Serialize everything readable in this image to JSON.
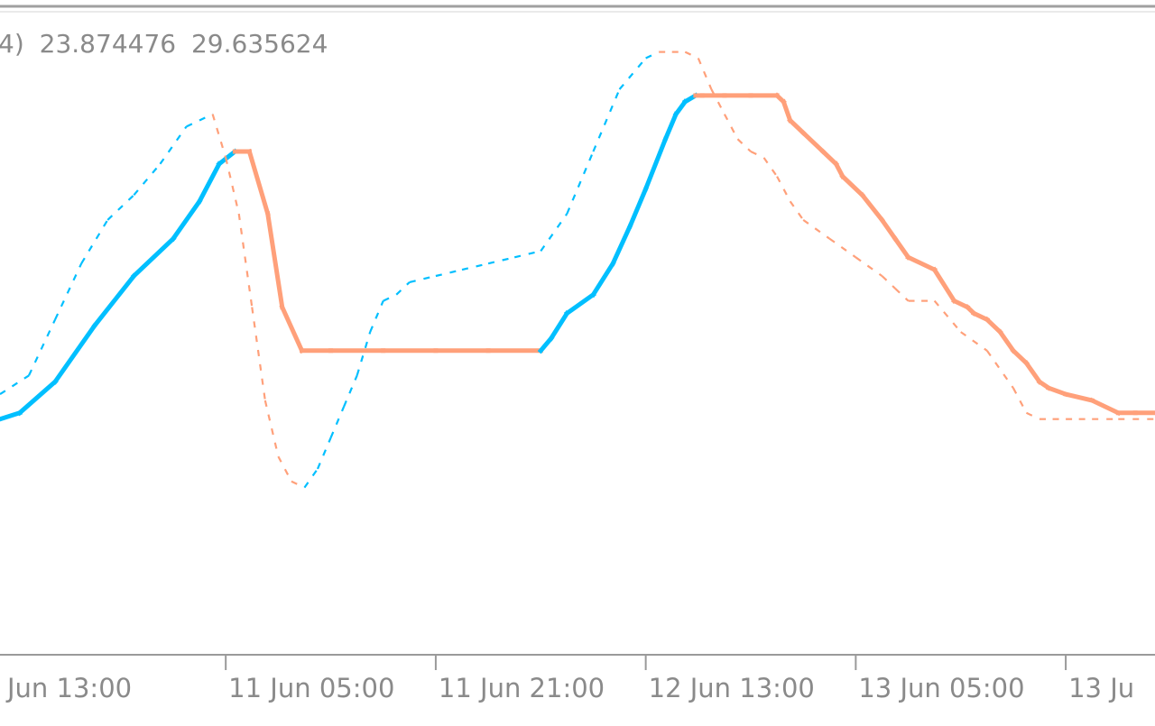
{
  "legend": {
    "prefix": "4)",
    "value_1": "23.874476",
    "value_2": "29.635624"
  },
  "colors": {
    "up": "#00bfff",
    "down": "#ffa07a",
    "axis": "#9a9a9a",
    "separator": "#a0a0a0",
    "text": "#8a8a8a",
    "background": "#ffffff"
  },
  "chart_data": {
    "type": "line",
    "title": "",
    "xlabel": "",
    "ylabel": "",
    "x_tick_labels": [
      "Jun 13:00",
      "11 Jun 05:00",
      "11 Jun 21:00",
      "12 Jun 13:00",
      "13 Jun 05:00",
      "13 Ju"
    ],
    "x_unit": "hours from 10 Jun 13:00",
    "x_range": [
      -1.2,
      86.8
    ],
    "y_range": [
      0,
      100
    ],
    "grid": false,
    "legend_placement": "top-left",
    "series": [
      {
        "style": "solid, thick",
        "coloring": "light blue while rising, light salmon while falling/flat",
        "x": [
          -1.2,
          0.3,
          3,
          6,
          9,
          12,
          14,
          15.5,
          16.7,
          17.4,
          17.8,
          19.2,
          20.3,
          21.8,
          24,
          28,
          32,
          36,
          40,
          40.8,
          42,
          44,
          45.5,
          46.8,
          48,
          49.5,
          50.3,
          51,
          51.8,
          52.3,
          54,
          56,
          58,
          58.5,
          59,
          60,
          61.5,
          62.5,
          63,
          64.5,
          66,
          67,
          68,
          70,
          71.5,
          72.5,
          73,
          74,
          75,
          76,
          77,
          78,
          78.7,
          80,
          82,
          84,
          85.3,
          86.8
        ],
        "y": [
          37,
          38,
          43,
          52,
          60,
          66,
          72,
          78,
          80,
          80,
          80,
          70,
          55,
          48,
          48,
          48,
          48,
          48,
          48,
          50,
          54,
          57,
          62,
          68,
          74,
          82,
          86,
          88,
          89,
          89,
          89,
          89,
          89,
          88,
          85,
          83,
          80,
          78,
          76,
          73,
          69,
          66,
          63,
          61,
          56,
          55,
          54,
          53,
          51,
          48,
          46,
          43,
          42,
          41,
          40,
          38,
          38,
          38
        ]
      },
      {
        "style": "dashed, thin",
        "coloring": "light blue while rising, light salmon while falling",
        "x": [
          -1.2,
          1,
          3,
          5,
          7,
          9,
          11,
          13,
          15,
          16,
          17,
          18,
          19,
          20,
          21,
          22,
          23,
          24,
          25,
          26,
          27,
          28,
          29,
          30,
          32,
          34,
          36,
          38,
          40,
          42,
          44,
          46,
          48,
          49,
          50,
          51,
          52,
          53,
          54,
          55,
          56,
          57,
          58,
          59,
          60,
          62,
          64,
          66,
          67,
          68,
          69,
          70,
          72,
          74,
          76,
          77,
          78,
          79,
          80,
          81,
          82,
          84,
          86.8
        ],
        "y": [
          41,
          44,
          53,
          62,
          69,
          73,
          78,
          84,
          86,
          79,
          70,
          55,
          40,
          31,
          27,
          26,
          29,
          34,
          39,
          44,
          51,
          56,
          57,
          59,
          60,
          61,
          62,
          63,
          64,
          70,
          80,
          90,
          95,
          96,
          96,
          96,
          95,
          90,
          86,
          82,
          80,
          79,
          76,
          72,
          69,
          66,
          63,
          60,
          58,
          56,
          56,
          56,
          51,
          48,
          42,
          38,
          37,
          37,
          37,
          37,
          37,
          37,
          37
        ]
      }
    ]
  }
}
